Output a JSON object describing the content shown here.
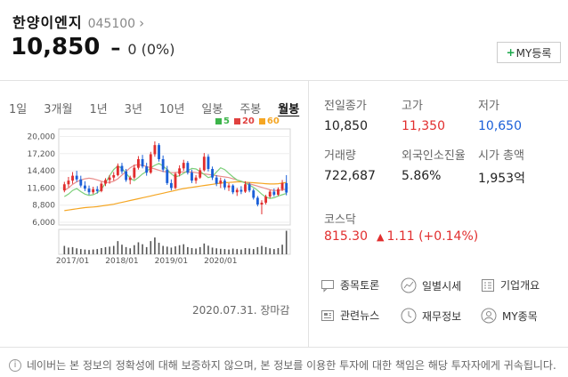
{
  "header": {
    "company": "한양이엔지",
    "code": "045100",
    "chevron": "›",
    "price": "10,850",
    "change_symbol": "–",
    "change": "0 (0%)",
    "my_button_plus": "+",
    "my_button_label": "MY등록"
  },
  "tabs": [
    "1일",
    "3개월",
    "1년",
    "3년",
    "10년",
    "일봉",
    "주봉",
    "월봉"
  ],
  "active_tab": "월봉",
  "legend": [
    {
      "label": "5",
      "color": "#3cb44a"
    },
    {
      "label": "20",
      "color": "#e0413f"
    },
    {
      "label": "60",
      "color": "#f5a623"
    }
  ],
  "chart_data": {
    "type": "candlestick",
    "y_ticks": [
      "20,000",
      "17,200",
      "14,400",
      "11,600",
      "8,800",
      "6,000"
    ],
    "x_ticks": [
      "2017/01",
      "2018/01",
      "2019/01",
      "2020/01"
    ],
    "ylim": [
      6000,
      20800
    ],
    "up_color": "#e12e2e",
    "down_color": "#1a5fd8",
    "ma5": [
      10200,
      10600,
      11200,
      11500,
      11000,
      10600,
      10400,
      10500,
      10800,
      11400,
      12400,
      13600,
      14600,
      15200,
      14800,
      14000,
      13200,
      12800,
      13300,
      13900,
      14300,
      14900,
      15300,
      15600,
      15200,
      14600,
      13900,
      13400,
      13600,
      14000,
      14400,
      14800,
      14700,
      14300,
      13800,
      13300,
      13500,
      14200,
      14900,
      14600,
      14000,
      13400,
      12900,
      12700,
      12400,
      12100,
      11700,
      11200,
      10600,
      10100,
      9900,
      10000,
      10300,
      10500,
      10700
    ],
    "ma20": [
      11200,
      11600,
      12200,
      12600,
      12900,
      13100,
      13200,
      13100,
      12900,
      12700,
      12500,
      12500,
      12700,
      13100,
      13700,
      14300,
      14900,
      15300,
      15400,
      15300,
      15100,
      14900,
      14700,
      14500,
      14300,
      14200,
      14100,
      14100,
      14200,
      14200,
      14200,
      14200,
      14100,
      14000,
      13900,
      13800,
      13700,
      13600,
      13500,
      13400,
      13300,
      13100,
      12900,
      12700,
      12500,
      12300,
      12100,
      11900,
      11700,
      11500,
      11300,
      11200,
      11200,
      11300,
      11400
    ],
    "ma60": [
      7900,
      8000,
      8100,
      8200,
      8300,
      8400,
      8450,
      8500,
      8550,
      8650,
      8750,
      8850,
      8950,
      9100,
      9250,
      9400,
      9550,
      9700,
      9850,
      10000,
      10150,
      10300,
      10450,
      10600,
      10750,
      10900,
      11050,
      11200,
      11350,
      11500,
      11600,
      11700,
      11800,
      11900,
      12000,
      12100,
      12200,
      12300,
      12400,
      12450,
      12500,
      12550,
      12600,
      12600,
      12550,
      12500,
      12450,
      12400,
      12350,
      12300,
      12250,
      12250,
      12300,
      12400,
      12500
    ],
    "candles": [
      {
        "o": 11200,
        "h": 12600,
        "l": 10900,
        "c": 12200
      },
      {
        "o": 12200,
        "h": 13400,
        "l": 11700,
        "c": 12800
      },
      {
        "o": 12800,
        "h": 14200,
        "l": 12300,
        "c": 13600
      },
      {
        "o": 13600,
        "h": 14400,
        "l": 12600,
        "c": 13000
      },
      {
        "o": 13000,
        "h": 13600,
        "l": 11700,
        "c": 12000
      },
      {
        "o": 12000,
        "h": 12700,
        "l": 11100,
        "c": 11500
      },
      {
        "o": 11500,
        "h": 12000,
        "l": 10500,
        "c": 10900
      },
      {
        "o": 10900,
        "h": 11800,
        "l": 10600,
        "c": 11400
      },
      {
        "o": 11400,
        "h": 11900,
        "l": 10700,
        "c": 11100
      },
      {
        "o": 11100,
        "h": 12600,
        "l": 10900,
        "c": 12300
      },
      {
        "o": 12300,
        "h": 13200,
        "l": 11900,
        "c": 12900
      },
      {
        "o": 12900,
        "h": 13700,
        "l": 12300,
        "c": 13300
      },
      {
        "o": 13300,
        "h": 14200,
        "l": 12800,
        "c": 13700
      },
      {
        "o": 13700,
        "h": 15600,
        "l": 13500,
        "c": 15200
      },
      {
        "o": 15200,
        "h": 15700,
        "l": 13900,
        "c": 14300
      },
      {
        "o": 14300,
        "h": 14700,
        "l": 12600,
        "c": 12900
      },
      {
        "o": 12900,
        "h": 13600,
        "l": 12200,
        "c": 13300
      },
      {
        "o": 13300,
        "h": 15400,
        "l": 13000,
        "c": 14900
      },
      {
        "o": 14900,
        "h": 16800,
        "l": 14600,
        "c": 16300
      },
      {
        "o": 16300,
        "h": 17000,
        "l": 14800,
        "c": 15100
      },
      {
        "o": 15100,
        "h": 15700,
        "l": 13600,
        "c": 14100
      },
      {
        "o": 14100,
        "h": 17500,
        "l": 13900,
        "c": 17100
      },
      {
        "o": 17100,
        "h": 19200,
        "l": 16700,
        "c": 18600
      },
      {
        "o": 18600,
        "h": 18900,
        "l": 15900,
        "c": 16300
      },
      {
        "o": 16300,
        "h": 16900,
        "l": 14200,
        "c": 14600
      },
      {
        "o": 14600,
        "h": 15200,
        "l": 12100,
        "c": 12400
      },
      {
        "o": 12400,
        "h": 13000,
        "l": 11200,
        "c": 11600
      },
      {
        "o": 11600,
        "h": 14200,
        "l": 11400,
        "c": 13900
      },
      {
        "o": 13900,
        "h": 15300,
        "l": 13500,
        "c": 14800
      },
      {
        "o": 14800,
        "h": 16200,
        "l": 14400,
        "c": 15700
      },
      {
        "o": 15700,
        "h": 16000,
        "l": 13800,
        "c": 14100
      },
      {
        "o": 14100,
        "h": 14600,
        "l": 12400,
        "c": 12800
      },
      {
        "o": 12800,
        "h": 13700,
        "l": 12300,
        "c": 13300
      },
      {
        "o": 13300,
        "h": 14900,
        "l": 13100,
        "c": 14500
      },
      {
        "o": 14500,
        "h": 17300,
        "l": 14300,
        "c": 16700
      },
      {
        "o": 16700,
        "h": 17100,
        "l": 14300,
        "c": 14700
      },
      {
        "o": 14700,
        "h": 15100,
        "l": 12900,
        "c": 13300
      },
      {
        "o": 13300,
        "h": 13700,
        "l": 11900,
        "c": 12300
      },
      {
        "o": 12300,
        "h": 13300,
        "l": 11600,
        "c": 12800
      },
      {
        "o": 12800,
        "h": 13100,
        "l": 11300,
        "c": 11700
      },
      {
        "o": 11700,
        "h": 12400,
        "l": 11100,
        "c": 12000
      },
      {
        "o": 12000,
        "h": 12200,
        "l": 10600,
        "c": 10900
      },
      {
        "o": 10900,
        "h": 11600,
        "l": 10300,
        "c": 11300
      },
      {
        "o": 11300,
        "h": 11900,
        "l": 10600,
        "c": 11000
      },
      {
        "o": 11000,
        "h": 12700,
        "l": 10800,
        "c": 12200
      },
      {
        "o": 12200,
        "h": 12500,
        "l": 10900,
        "c": 11200
      },
      {
        "o": 11200,
        "h": 11500,
        "l": 9700,
        "c": 10000
      },
      {
        "o": 10000,
        "h": 10300,
        "l": 8600,
        "c": 8900
      },
      {
        "o": 8900,
        "h": 9600,
        "l": 7300,
        "c": 9200
      },
      {
        "o": 9200,
        "h": 10500,
        "l": 8900,
        "c": 10200
      },
      {
        "o": 10200,
        "h": 11300,
        "l": 9900,
        "c": 11000
      },
      {
        "o": 11000,
        "h": 11500,
        "l": 10200,
        "c": 10500
      },
      {
        "o": 10500,
        "h": 11700,
        "l": 10300,
        "c": 11400
      },
      {
        "o": 11400,
        "h": 12900,
        "l": 11100,
        "c": 12400
      },
      {
        "o": 12400,
        "h": 13700,
        "l": 10400,
        "c": 10850
      }
    ],
    "volume": [
      0.35,
      0.28,
      0.3,
      0.25,
      0.22,
      0.2,
      0.18,
      0.2,
      0.22,
      0.26,
      0.3,
      0.32,
      0.35,
      0.55,
      0.4,
      0.3,
      0.25,
      0.38,
      0.5,
      0.42,
      0.3,
      0.55,
      0.7,
      0.48,
      0.35,
      0.32,
      0.28,
      0.33,
      0.38,
      0.42,
      0.3,
      0.26,
      0.24,
      0.3,
      0.45,
      0.36,
      0.28,
      0.25,
      0.23,
      0.22,
      0.2,
      0.24,
      0.22,
      0.2,
      0.26,
      0.24,
      0.22,
      0.3,
      0.35,
      0.3,
      0.25,
      0.22,
      0.26,
      0.4,
      0.98
    ]
  },
  "closed_label": "2020.07.31. 장마감",
  "stats": [
    {
      "label": "전일종가",
      "value": "10,850",
      "tone": "normal"
    },
    {
      "label": "고가",
      "value": "11,350",
      "tone": "up"
    },
    {
      "label": "저가",
      "value": "10,650",
      "tone": "down"
    },
    {
      "label": "거래량",
      "value": "722,687",
      "tone": "normal"
    },
    {
      "label": "외국인소진율",
      "value": "5.86%",
      "tone": "normal"
    },
    {
      "label": "시가 총액",
      "value": "1,953억",
      "tone": "normal"
    }
  ],
  "kosdaq": {
    "label": "코스닥",
    "value": "815.30",
    "arrow": "▲",
    "change": "1.11 (+0.14%)"
  },
  "links": [
    {
      "label": "종목토론",
      "icon": "discussion-icon"
    },
    {
      "label": "일별시세",
      "icon": "daily-chart-icon"
    },
    {
      "label": "기업개요",
      "icon": "company-overview-icon"
    },
    {
      "label": "관련뉴스",
      "icon": "news-icon"
    },
    {
      "label": "재무정보",
      "icon": "finance-clock-icon"
    },
    {
      "label": "MY종목",
      "icon": "my-stock-icon"
    }
  ],
  "footer": {
    "icon": "i",
    "text": "네이버는 본 정보의 정확성에 대해 보증하지 않으며, 본 정보를 이용한 투자에 대한 책임은 해당 투자자에게 귀속됩니다."
  }
}
